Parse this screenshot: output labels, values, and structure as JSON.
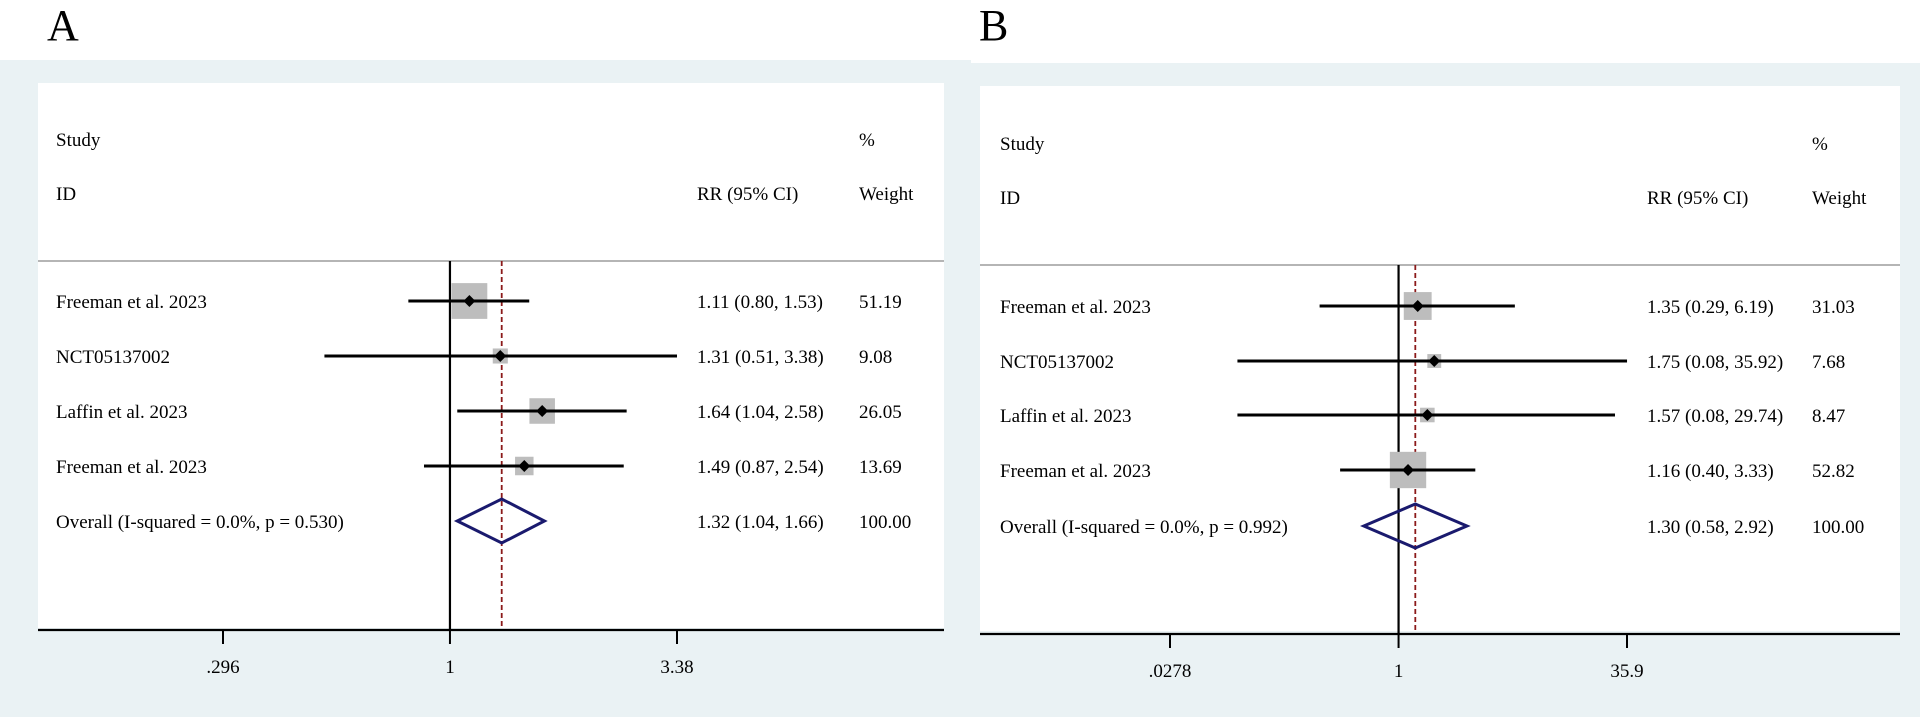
{
  "chart_data": [
    {
      "panel": "A",
      "type": "forest",
      "header": {
        "study_line1": "Study",
        "study_line2": "ID",
        "effect": "RR (95% CI)",
        "weight_line1": "%",
        "weight_line2": "Weight"
      },
      "x_scale": "log",
      "ticks": [
        {
          "value": 0.296,
          "label": ".296"
        },
        {
          "value": 1,
          "label": "1"
        },
        {
          "value": 3.38,
          "label": "3.38"
        }
      ],
      "xlim": [
        0.2,
        4.5
      ],
      "null_line": 1,
      "pooled_line": 1.32,
      "studies": [
        {
          "label": "Freeman et al. 2023",
          "rr": 1.11,
          "lo": 0.8,
          "hi": 1.53,
          "ci_text": "1.11 (0.80, 1.53)",
          "weight": 51.19,
          "weight_text": "51.19"
        },
        {
          "label": "NCT05137002",
          "rr": 1.31,
          "lo": 0.51,
          "hi": 3.38,
          "ci_text": "1.31 (0.51, 3.38)",
          "weight": 9.08,
          "weight_text": "9.08"
        },
        {
          "label": "Laffin et al. 2023",
          "rr": 1.64,
          "lo": 1.04,
          "hi": 2.58,
          "ci_text": "1.64 (1.04, 2.58)",
          "weight": 26.05,
          "weight_text": "26.05"
        },
        {
          "label": "Freeman et al. 2023",
          "rr": 1.49,
          "lo": 0.87,
          "hi": 2.54,
          "ci_text": "1.49 (0.87, 2.54)",
          "weight": 13.69,
          "weight_text": "13.69"
        }
      ],
      "overall": {
        "label": "Overall  (I-squared = 0.0%, p = 0.530)",
        "rr": 1.32,
        "lo": 1.04,
        "hi": 1.66,
        "ci_text": "1.32 (1.04, 1.66)",
        "weight_text": "100.00"
      },
      "colors": {
        "box": "#bdbdbd",
        "diamond": "#1a1a6e",
        "pooled": "#8b1a1a",
        "ci": "#000000"
      }
    },
    {
      "panel": "B",
      "type": "forest",
      "header": {
        "study_line1": "Study",
        "study_line2": "ID",
        "effect": "RR (95% CI)",
        "weight_line1": "%",
        "weight_line2": "Weight"
      },
      "x_scale": "log",
      "ticks": [
        {
          "value": 0.0278,
          "label": ".0278"
        },
        {
          "value": 1,
          "label": "1"
        },
        {
          "value": 35.9,
          "label": "35.9"
        }
      ],
      "xlim": [
        0.012,
        80
      ],
      "null_line": 1,
      "pooled_line": 1.3,
      "studies": [
        {
          "label": "Freeman et al. 2023",
          "rr": 1.35,
          "lo": 0.29,
          "hi": 6.19,
          "ci_text": "1.35 (0.29, 6.19)",
          "weight": 31.03,
          "weight_text": "31.03"
        },
        {
          "label": "NCT05137002",
          "rr": 1.75,
          "lo": 0.08,
          "hi": 35.92,
          "ci_text": "1.75 (0.08, 35.92)",
          "weight": 7.68,
          "weight_text": "7.68"
        },
        {
          "label": "Laffin et al. 2023",
          "rr": 1.57,
          "lo": 0.08,
          "hi": 29.74,
          "ci_text": "1.57 (0.08, 29.74)",
          "weight": 8.47,
          "weight_text": "8.47"
        },
        {
          "label": "Freeman et al. 2023",
          "rr": 1.16,
          "lo": 0.4,
          "hi": 3.33,
          "ci_text": "1.16 (0.40, 3.33)",
          "weight": 52.82,
          "weight_text": "52.82"
        }
      ],
      "overall": {
        "label": "Overall  (I-squared = 0.0%, p = 0.992)",
        "rr": 1.3,
        "lo": 0.58,
        "hi": 2.92,
        "ci_text": "1.30 (0.58, 2.92)",
        "weight_text": "100.00"
      },
      "colors": {
        "box": "#bdbdbd",
        "diamond": "#1a1a6e",
        "pooled": "#8b1a1a",
        "ci": "#000000"
      }
    }
  ]
}
